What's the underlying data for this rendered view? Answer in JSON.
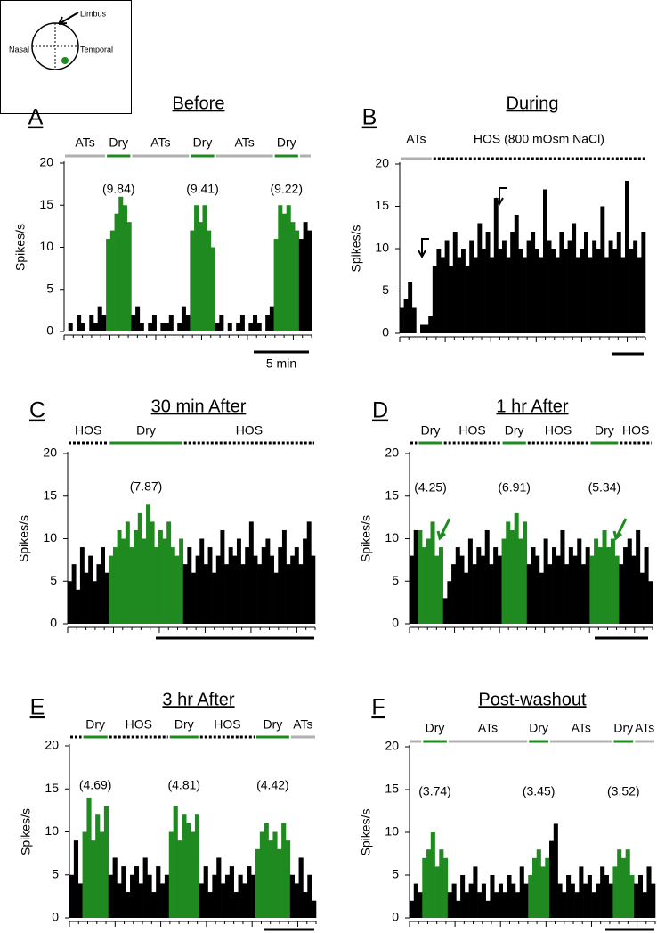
{
  "inset": {
    "top": "Limbus",
    "left": "Nasal",
    "right": "Temporal"
  },
  "chart_data": [
    {
      "type": "bar",
      "panel": "A",
      "title": "Before",
      "ylabel": "Spikes/s",
      "ylim": [
        0,
        20
      ],
      "yticks": [
        0,
        5,
        10,
        15,
        20
      ],
      "grid": false,
      "scale_bar": "5 min",
      "segments": [
        {
          "label": "ATs",
          "color": "#000000",
          "line_color": "#b0b0b0",
          "line_style": "solid",
          "values": [
            0,
            1,
            0,
            2,
            1,
            0,
            2,
            1,
            3,
            2
          ]
        },
        {
          "label": "Dry",
          "color": "#1f8a1f",
          "line_color": "#1f8a1f",
          "line_style": "solid",
          "annotation": "(9.84)",
          "values": [
            11,
            12,
            14,
            16,
            15,
            13
          ]
        },
        {
          "label": "ATs",
          "color": "#000000",
          "line_color": "#b0b0b0",
          "line_style": "solid",
          "values": [
            2,
            3,
            1,
            0,
            1,
            2,
            0,
            1,
            1,
            2,
            0,
            1,
            3,
            2
          ]
        },
        {
          "label": "Dry",
          "color": "#1f8a1f",
          "line_color": "#1f8a1f",
          "line_style": "solid",
          "annotation": "(9.41)",
          "values": [
            12,
            15,
            13,
            15,
            12,
            10
          ]
        },
        {
          "label": "ATs",
          "color": "#000000",
          "line_color": "#b0b0b0",
          "line_style": "solid",
          "values": [
            1,
            2,
            0,
            1,
            0,
            1,
            2,
            0,
            1,
            2,
            1,
            0,
            2,
            3
          ]
        },
        {
          "label": "Dry",
          "color": "#1f8a1f",
          "line_color": "#1f8a1f",
          "line_style": "solid",
          "annotation": "(9.22)",
          "values": [
            11,
            15,
            14,
            15,
            13,
            12
          ]
        },
        {
          "label": null,
          "color": "#000000",
          "line_color": "#b0b0b0",
          "line_style": "solid",
          "values": [
            11,
            13,
            12
          ]
        }
      ]
    },
    {
      "type": "bar",
      "panel": "B",
      "title": "During",
      "ylabel": "Spikes/s",
      "ylim": [
        0,
        20
      ],
      "yticks": [
        0,
        5,
        10,
        15,
        20
      ],
      "grid": false,
      "segments": [
        {
          "label": "ATs",
          "color": "#000000",
          "line_color": "#b0b0b0",
          "line_style": "solid",
          "values": [
            3,
            4,
            6,
            3,
            0,
            1,
            1,
            2
          ]
        },
        {
          "label": "HOS (800 mOsm NaCl)",
          "color": "#000000",
          "line_color": "#000000",
          "line_style": "dotted",
          "values": [
            8,
            10,
            9,
            11,
            8,
            12,
            9,
            10,
            8,
            11,
            9,
            13,
            10,
            12,
            9,
            16,
            10,
            11,
            9,
            12,
            14,
            10,
            9,
            11,
            12,
            10,
            9,
            17,
            11,
            10,
            9,
            12,
            10,
            11,
            13,
            9,
            10,
            12,
            9,
            11,
            10,
            15,
            9,
            11,
            10,
            12,
            9,
            18,
            10,
            11,
            9,
            12
          ]
        }
      ]
    },
    {
      "type": "bar",
      "panel": "C",
      "title": "30 min After",
      "ylabel": "Spikes/s",
      "ylim": [
        0,
        20
      ],
      "yticks": [
        0,
        5,
        10,
        15,
        20
      ],
      "grid": false,
      "segments": [
        {
          "label": "HOS",
          "color": "#000000",
          "line_color": "#000000",
          "line_style": "dotted",
          "values": [
            5,
            7,
            4,
            9,
            6,
            8,
            5,
            7,
            9,
            6
          ]
        },
        {
          "label": "Dry",
          "color": "#1f8a1f",
          "line_color": "#1f8a1f",
          "line_style": "solid",
          "annotation": "(7.87)",
          "values": [
            8,
            9,
            11,
            10,
            12,
            9,
            11,
            13,
            10,
            14,
            12,
            9,
            11,
            10,
            12,
            9,
            8,
            10
          ]
        },
        {
          "label": "HOS",
          "color": "#000000",
          "line_color": "#000000",
          "line_style": "dotted",
          "values": [
            7,
            9,
            6,
            8,
            10,
            7,
            9,
            6,
            8,
            11,
            7,
            9,
            8,
            10,
            7,
            9,
            12,
            8,
            7,
            9,
            10,
            8,
            6,
            9,
            11,
            7,
            8,
            9,
            7,
            10,
            12,
            8
          ]
        }
      ]
    },
    {
      "type": "bar",
      "panel": "D",
      "title": "1 hr After",
      "ylabel": "Spikes/s",
      "ylim": [
        0,
        20
      ],
      "yticks": [
        0,
        5,
        10,
        15,
        20
      ],
      "grid": false,
      "segments": [
        {
          "label": null,
          "color": "#000000",
          "line_color": "#000000",
          "line_style": "dotted",
          "values": [
            8,
            11
          ]
        },
        {
          "label": "Dry",
          "color": "#1f8a1f",
          "line_color": "#1f8a1f",
          "line_style": "solid",
          "annotation": "(4.25)",
          "values": [
            11,
            9,
            10,
            12,
            8,
            9
          ]
        },
        {
          "label": "HOS",
          "color": "#000000",
          "line_color": "#000000",
          "line_style": "dotted",
          "values": [
            3,
            5,
            7,
            9,
            8,
            6,
            10,
            7,
            9,
            8,
            11,
            7,
            9,
            8
          ]
        },
        {
          "label": "Dry",
          "color": "#1f8a1f",
          "line_color": "#1f8a1f",
          "line_style": "solid",
          "annotation": "(6.91)",
          "values": [
            10,
            12,
            11,
            13,
            10,
            12
          ]
        },
        {
          "label": "HOS",
          "color": "#000000",
          "line_color": "#000000",
          "line_style": "dotted",
          "values": [
            7,
            9,
            8,
            6,
            10,
            7,
            9,
            8,
            11,
            7,
            9,
            8,
            10,
            7,
            9
          ]
        },
        {
          "label": "Dry",
          "color": "#1f8a1f",
          "line_color": "#1f8a1f",
          "line_style": "solid",
          "annotation": "(5.34)",
          "values": [
            8,
            10,
            9,
            11,
            9,
            10,
            8
          ]
        },
        {
          "label": "HOS",
          "color": "#000000",
          "line_color": "#000000",
          "line_style": "dotted",
          "values": [
            7,
            9,
            10,
            8,
            11,
            6,
            9,
            5
          ]
        }
      ]
    },
    {
      "type": "bar",
      "panel": "E",
      "title": "3 hr After",
      "ylabel": "Spikes/s",
      "ylim": [
        0,
        20
      ],
      "yticks": [
        0,
        5,
        10,
        15,
        20
      ],
      "grid": false,
      "segments": [
        {
          "label": null,
          "color": "#000000",
          "line_color": "#000000",
          "line_style": "dotted",
          "values": [
            5,
            9,
            4
          ]
        },
        {
          "label": "Dry",
          "color": "#1f8a1f",
          "line_color": "#1f8a1f",
          "line_style": "solid",
          "annotation": "(4.69)",
          "values": [
            10,
            14,
            9,
            12,
            10,
            13
          ]
        },
        {
          "label": "HOS",
          "color": "#000000",
          "line_color": "#000000",
          "line_style": "dotted",
          "values": [
            5,
            7,
            4,
            6,
            3,
            5,
            6,
            4,
            7,
            5,
            3,
            6,
            4,
            5
          ]
        },
        {
          "label": "Dry",
          "color": "#1f8a1f",
          "line_color": "#1f8a1f",
          "line_style": "solid",
          "annotation": "(4.81)",
          "values": [
            10,
            13,
            9,
            12,
            11,
            10,
            12
          ]
        },
        {
          "label": "HOS",
          "color": "#000000",
          "line_color": "#000000",
          "line_style": "dotted",
          "values": [
            4,
            6,
            3,
            5,
            7,
            4,
            5,
            6,
            3,
            5,
            4,
            6,
            5
          ]
        },
        {
          "label": "Dry",
          "color": "#1f8a1f",
          "line_color": "#1f8a1f",
          "line_style": "solid",
          "annotation": "(4.42)",
          "values": [
            8,
            10,
            11,
            9,
            10,
            8,
            11,
            9
          ]
        },
        {
          "label": "ATs",
          "color": "#000000",
          "line_color": "#b0b0b0",
          "line_style": "solid",
          "values": [
            5,
            4,
            7,
            3,
            5,
            2
          ]
        }
      ]
    },
    {
      "type": "bar",
      "panel": "F",
      "title": "Post-washout",
      "ylabel": "Spikes/s",
      "ylim": [
        0,
        20
      ],
      "yticks": [
        0,
        5,
        10,
        15,
        20
      ],
      "grid": false,
      "segments": [
        {
          "label": null,
          "color": "#000000",
          "line_color": "#b0b0b0",
          "line_style": "solid",
          "values": [
            2,
            4,
            3
          ]
        },
        {
          "label": "Dry",
          "color": "#1f8a1f",
          "line_color": "#1f8a1f",
          "line_style": "solid",
          "annotation": "(3.74)",
          "values": [
            7,
            8,
            10,
            6,
            8,
            7
          ]
        },
        {
          "label": "ATs",
          "color": "#000000",
          "line_color": "#b0b0b0",
          "line_style": "solid",
          "values": [
            3,
            4,
            2,
            5,
            3,
            4,
            6,
            3,
            4,
            2,
            5,
            3,
            4,
            3,
            5,
            4,
            3,
            6,
            4
          ]
        },
        {
          "label": "Dry",
          "color": "#1f8a1f",
          "line_color": "#1f8a1f",
          "line_style": "solid",
          "annotation": "(3.45)",
          "values": [
            5,
            7,
            8,
            6,
            7
          ]
        },
        {
          "label": "ATs",
          "color": "#000000",
          "line_color": "#b0b0b0",
          "line_style": "solid",
          "values": [
            9,
            11,
            4,
            3,
            5,
            4,
            3,
            6,
            4,
            5,
            3,
            4,
            6,
            5,
            4
          ]
        },
        {
          "label": "Dry",
          "color": "#1f8a1f",
          "line_color": "#1f8a1f",
          "line_style": "solid",
          "annotation": "(3.52)",
          "values": [
            6,
            8,
            7,
            8,
            5
          ]
        },
        {
          "label": "ATs",
          "color": "#000000",
          "line_color": "#b0b0b0",
          "line_style": "solid",
          "values": [
            4,
            5,
            3,
            6,
            4
          ]
        }
      ]
    }
  ]
}
